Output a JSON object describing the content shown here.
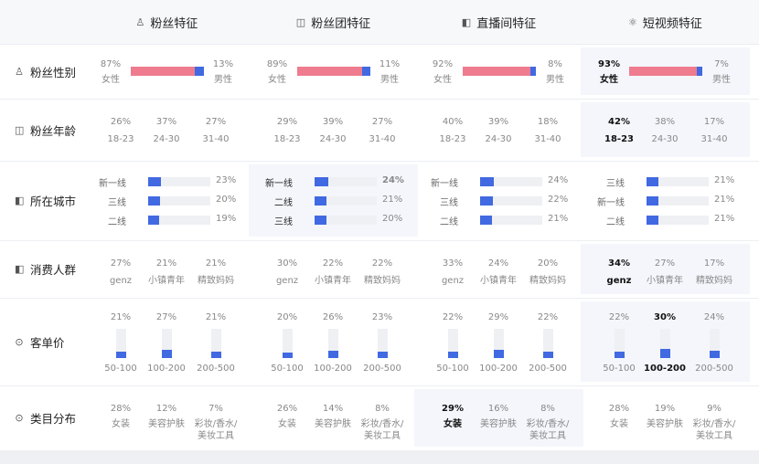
{
  "columns": [
    {
      "icon": "♙",
      "label": "粉丝特征"
    },
    {
      "icon": "◫",
      "label": "粉丝团特征"
    },
    {
      "icon": "◧",
      "label": "直播间特征"
    },
    {
      "icon": "⚛",
      "label": "短视频特征"
    }
  ],
  "rows": [
    {
      "icon": "♙",
      "label": "粉丝性别"
    },
    {
      "icon": "◫",
      "label": "粉丝年龄"
    },
    {
      "icon": "◧",
      "label": "所在城市"
    },
    {
      "icon": "◧",
      "label": "消费人群"
    },
    {
      "icon": "⊙",
      "label": "客单价"
    },
    {
      "icon": "⊙",
      "label": "类目分布"
    }
  ],
  "gender": [
    {
      "female_pct": "87%",
      "female": "女性",
      "male_pct": "13%",
      "male": "男性",
      "male_share": 0.13
    },
    {
      "female_pct": "89%",
      "female": "女性",
      "male_pct": "11%",
      "male": "男性",
      "male_share": 0.11
    },
    {
      "female_pct": "92%",
      "female": "女性",
      "male_pct": "8%",
      "male": "男性",
      "male_share": 0.08
    },
    {
      "female_pct": "93%",
      "female": "女性",
      "male_pct": "7%",
      "male": "男性",
      "male_share": 0.07
    }
  ],
  "age": [
    [
      {
        "pct": "26%",
        "label": "18-23"
      },
      {
        "pct": "37%",
        "label": "24-30"
      },
      {
        "pct": "27%",
        "label": "31-40"
      }
    ],
    [
      {
        "pct": "29%",
        "label": "18-23"
      },
      {
        "pct": "39%",
        "label": "24-30"
      },
      {
        "pct": "27%",
        "label": "31-40"
      }
    ],
    [
      {
        "pct": "40%",
        "label": "18-23"
      },
      {
        "pct": "39%",
        "label": "24-30"
      },
      {
        "pct": "18%",
        "label": "31-40"
      }
    ],
    [
      {
        "pct": "42%",
        "label": "18-23"
      },
      {
        "pct": "38%",
        "label": "24-30"
      },
      {
        "pct": "17%",
        "label": "31-40"
      }
    ]
  ],
  "city": [
    [
      {
        "name": "新一线",
        "pct": "23%",
        "share": 0.23
      },
      {
        "name": "三线",
        "pct": "20%",
        "share": 0.2
      },
      {
        "name": "二线",
        "pct": "19%",
        "share": 0.19
      }
    ],
    [
      {
        "name": "新一线",
        "pct": "24%",
        "share": 0.24
      },
      {
        "name": "二线",
        "pct": "21%",
        "share": 0.21
      },
      {
        "name": "三线",
        "pct": "20%",
        "share": 0.2
      }
    ],
    [
      {
        "name": "新一线",
        "pct": "24%",
        "share": 0.24
      },
      {
        "name": "三线",
        "pct": "22%",
        "share": 0.22
      },
      {
        "name": "二线",
        "pct": "21%",
        "share": 0.21
      }
    ],
    [
      {
        "name": "三线",
        "pct": "21%",
        "share": 0.21
      },
      {
        "name": "新一线",
        "pct": "21%",
        "share": 0.21
      },
      {
        "name": "二线",
        "pct": "21%",
        "share": 0.21
      }
    ]
  ],
  "consumer": [
    [
      {
        "pct": "27%",
        "label": "genz"
      },
      {
        "pct": "21%",
        "label": "小镇青年"
      },
      {
        "pct": "21%",
        "label": "精致妈妈"
      }
    ],
    [
      {
        "pct": "30%",
        "label": "genz"
      },
      {
        "pct": "22%",
        "label": "小镇青年"
      },
      {
        "pct": "22%",
        "label": "精致妈妈"
      }
    ],
    [
      {
        "pct": "33%",
        "label": "genz"
      },
      {
        "pct": "24%",
        "label": "小镇青年"
      },
      {
        "pct": "20%",
        "label": "精致妈妈"
      }
    ],
    [
      {
        "pct": "34%",
        "label": "genz"
      },
      {
        "pct": "27%",
        "label": "小镇青年"
      },
      {
        "pct": "17%",
        "label": "精致妈妈"
      }
    ]
  ],
  "price": [
    [
      {
        "pct": "21%",
        "label": "50-100",
        "share": 0.21
      },
      {
        "pct": "27%",
        "label": "100-200",
        "share": 0.27
      },
      {
        "pct": "21%",
        "label": "200-500",
        "share": 0.21
      }
    ],
    [
      {
        "pct": "20%",
        "label": "50-100",
        "share": 0.2
      },
      {
        "pct": "26%",
        "label": "100-200",
        "share": 0.26
      },
      {
        "pct": "23%",
        "label": "200-500",
        "share": 0.23
      }
    ],
    [
      {
        "pct": "22%",
        "label": "50-100",
        "share": 0.22
      },
      {
        "pct": "29%",
        "label": "100-200",
        "share": 0.29
      },
      {
        "pct": "22%",
        "label": "200-500",
        "share": 0.22
      }
    ],
    [
      {
        "pct": "22%",
        "label": "50-100",
        "share": 0.22
      },
      {
        "pct": "30%",
        "label": "100-200",
        "share": 0.3
      },
      {
        "pct": "24%",
        "label": "200-500",
        "share": 0.24
      }
    ]
  ],
  "category": [
    [
      {
        "pct": "28%",
        "label": "女装"
      },
      {
        "pct": "12%",
        "label": "美容护肤"
      },
      {
        "pct": "7%",
        "label": "彩妆/香水/\n美妆工具"
      }
    ],
    [
      {
        "pct": "26%",
        "label": "女装"
      },
      {
        "pct": "14%",
        "label": "美容护肤"
      },
      {
        "pct": "8%",
        "label": "彩妆/香水/\n美妆工具"
      }
    ],
    [
      {
        "pct": "29%",
        "label": "女装"
      },
      {
        "pct": "16%",
        "label": "美容护肤"
      },
      {
        "pct": "8%",
        "label": "彩妆/香水/\n美妆工具"
      }
    ],
    [
      {
        "pct": "28%",
        "label": "女装"
      },
      {
        "pct": "19%",
        "label": "美容护肤"
      },
      {
        "pct": "9%",
        "label": "彩妆/香水/\n美妆工具"
      }
    ]
  ],
  "colors": {
    "female": "#ef7c8e",
    "male": "#4169e1",
    "bar": "#4169e1",
    "track": "#eef0f4",
    "highlight": "#f4f6fb"
  }
}
